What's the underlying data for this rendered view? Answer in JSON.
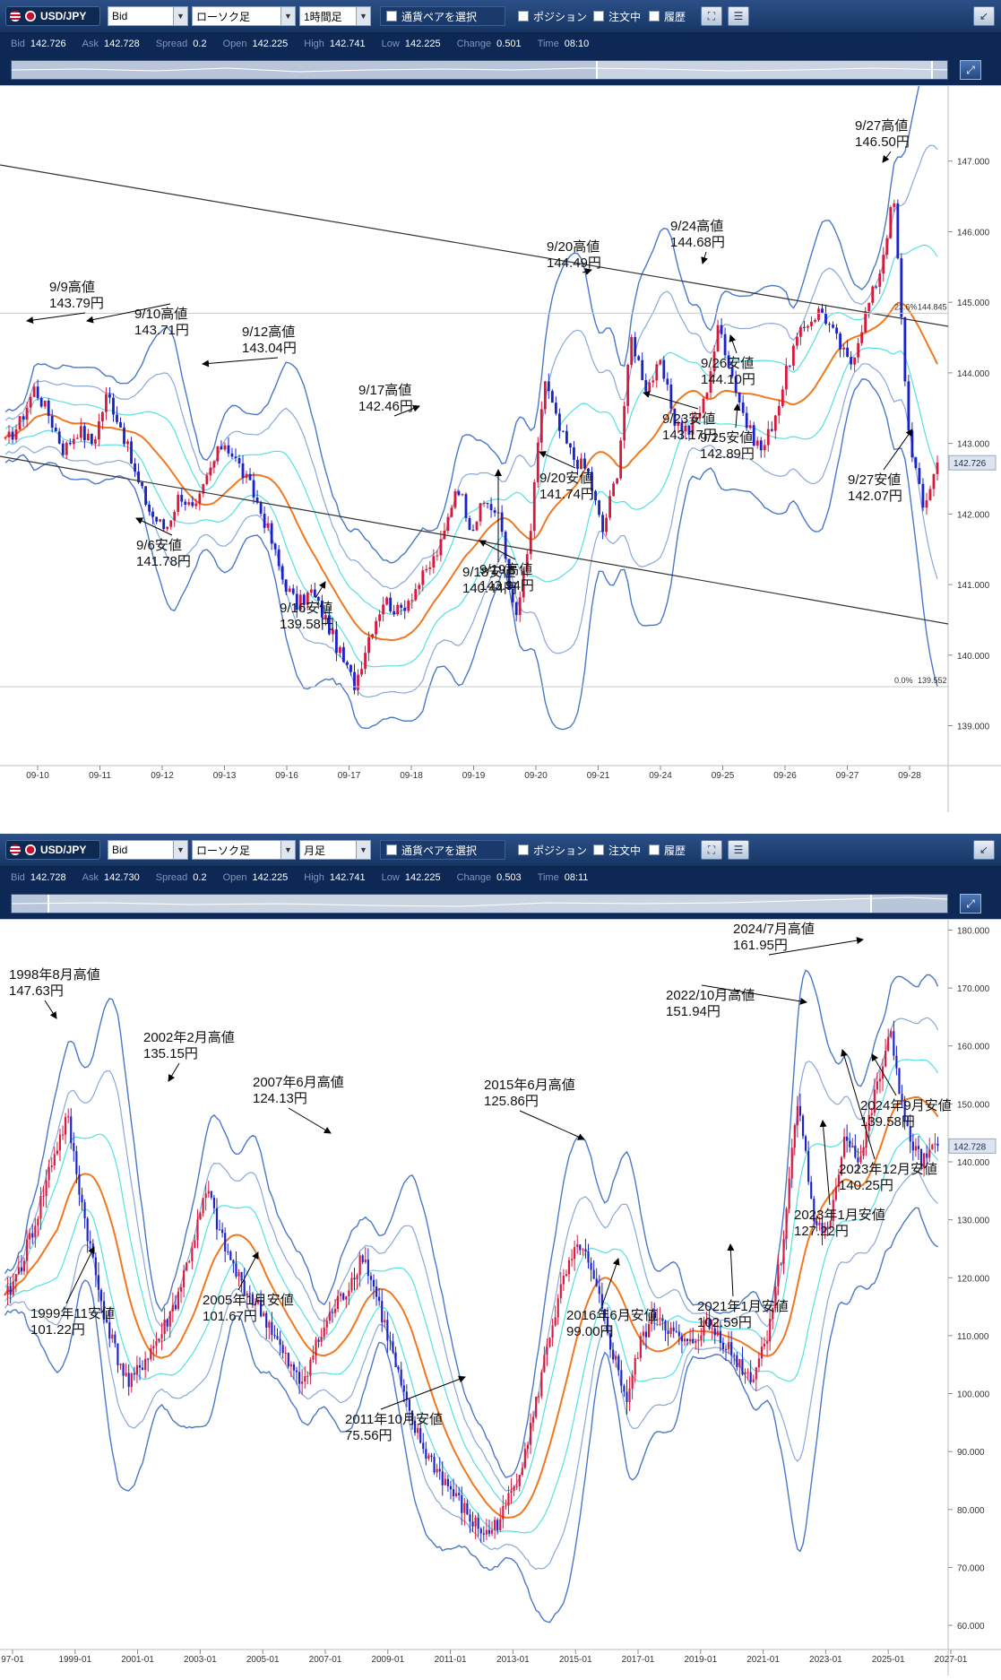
{
  "panels": [
    {
      "toolbar": {
        "pair": "USD/JPY",
        "price_type": "Bid",
        "chart_type": "ローソク足",
        "timeframe": "1時間足",
        "select_pair": "通貨ペアを選択",
        "position": "ポジション",
        "order": "注文中",
        "history": "履歴"
      },
      "info": {
        "bid_label": "Bid",
        "bid": "142.726",
        "ask_label": "Ask",
        "ask": "142.728",
        "spread_label": "Spread",
        "spread": "0.2",
        "open_label": "Open",
        "open": "142.225",
        "high_label": "High",
        "high": "142.741",
        "low_label": "Low",
        "low": "142.225",
        "change_label": "Change",
        "change": "0.501",
        "time_label": "Time",
        "time": "08:10"
      },
      "colors": {
        "up": "#d7193d",
        "down": "#1a22c8",
        "ma": "#f07820",
        "band1": "#55e0e0",
        "band2": "#8aa8d8",
        "band3": "#4a78c8"
      },
      "chart_data": {
        "type": "candlestick",
        "x_labels": [
          "09-10",
          "09-11",
          "09-12",
          "09-13",
          "09-16",
          "09-17",
          "09-18",
          "09-19",
          "09-20",
          "09-21",
          "09-24",
          "09-25",
          "09-26",
          "09-27",
          "09-28"
        ],
        "ylim": [
          138.6,
          148.0
        ],
        "y_ticks": [
          "147.000",
          "146.000",
          "145.000",
          "144.000",
          "143.000",
          "142.000",
          "141.000",
          "140.000",
          "139.000"
        ],
        "price_marker": "142.726",
        "fib_levels": [
          {
            "label": "23.6%",
            "value": "144.845",
            "y": 144.845
          },
          {
            "label": "0.0%",
            "value": "139.552",
            "y": 139.552
          }
        ],
        "annotations": [
          {
            "line1": "9/9高値",
            "line2": "143.79円"
          },
          {
            "line1": "9/10高値",
            "line2": "143.71円"
          },
          {
            "line1": "9/12高値",
            "line2": "143.04円"
          },
          {
            "line1": "9/6安値",
            "line2": "141.78円"
          },
          {
            "line1": "9/16安値",
            "line2": "139.58円"
          },
          {
            "line1": "9/17高値",
            "line2": "142.46円"
          },
          {
            "line1": "9/19高値",
            "line2": "143.94円"
          },
          {
            "line1": "9/18安値",
            "line2": "140.44円"
          },
          {
            "line1": "9/20高値",
            "line2": "144.49円"
          },
          {
            "line1": "9/20安値",
            "line2": "141.74円"
          },
          {
            "line1": "9/24高値",
            "line2": "144.68円"
          },
          {
            "line1": "9/23安値",
            "line2": "143.17円"
          },
          {
            "line1": "9/25安値",
            "line2": "142.89円"
          },
          {
            "line1": "9/26安値",
            "line2": "144.10円"
          },
          {
            "line1": "9/27高値",
            "line2": "146.50円"
          },
          {
            "line1": "9/27安値",
            "line2": "142.07円"
          }
        ],
        "path": [
          143.0,
          143.3,
          143.79,
          143.4,
          142.9,
          143.2,
          143.0,
          143.71,
          143.2,
          142.5,
          142.0,
          141.78,
          142.3,
          142.0,
          142.6,
          143.04,
          142.7,
          142.3,
          141.8,
          141.1,
          140.7,
          140.9,
          140.5,
          140.0,
          139.58,
          140.3,
          140.8,
          140.6,
          140.9,
          141.2,
          141.6,
          142.46,
          141.8,
          142.2,
          141.9,
          140.44,
          141.6,
          143.94,
          143.2,
          142.8,
          142.6,
          141.74,
          142.6,
          144.49,
          143.8,
          144.1,
          143.3,
          143.17,
          143.6,
          144.68,
          143.9,
          143.2,
          142.89,
          143.5,
          144.3,
          144.7,
          144.9,
          144.5,
          144.1,
          144.8,
          145.4,
          146.5,
          143.2,
          142.07,
          142.726
        ]
      }
    },
    {
      "toolbar": {
        "pair": "USD/JPY",
        "price_type": "Bid",
        "chart_type": "ローソク足",
        "timeframe": "月足",
        "select_pair": "通貨ペアを選択",
        "position": "ポジション",
        "order": "注文中",
        "history": "履歴"
      },
      "info": {
        "bid_label": "Bid",
        "bid": "142.728",
        "ask_label": "Ask",
        "ask": "142.730",
        "spread_label": "Spread",
        "spread": "0.2",
        "open_label": "Open",
        "open": "142.225",
        "high_label": "High",
        "high": "142.741",
        "low_label": "Low",
        "low": "142.225",
        "change_label": "Change",
        "change": "0.503",
        "time_label": "Time",
        "time": "08:11"
      },
      "chart_data": {
        "type": "candlestick",
        "x_labels": [
          "97-01",
          "1999-01",
          "2001-01",
          "2003-01",
          "2005-01",
          "2007-01",
          "2009-01",
          "2011-01",
          "2013-01",
          "2015-01",
          "2017-01",
          "2019-01",
          "2021-01",
          "2023-01",
          "2025-01",
          "2027-01"
        ],
        "ylim": [
          58,
          181
        ],
        "y_ticks": [
          "180.000",
          "170.000",
          "160.000",
          "150.000",
          "140.000",
          "130.000",
          "120.000",
          "110.000",
          "100.000",
          "90.000",
          "80.000",
          "70.000",
          "60.000"
        ],
        "price_marker": "142.728",
        "annotations": [
          {
            "line1": "1998年8月高値",
            "line2": "147.63円"
          },
          {
            "line1": "1999年11安値",
            "line2": "101.22円"
          },
          {
            "line1": "2002年2月高値",
            "line2": "135.15円"
          },
          {
            "line1": "2005年1月安値",
            "line2": "101.67円"
          },
          {
            "line1": "2007年6月高値",
            "line2": "124.13円"
          },
          {
            "line1": "2011年10月安値",
            "line2": "75.56円"
          },
          {
            "line1": "2015年6月高値",
            "line2": "125.86円"
          },
          {
            "line1": "2016年6月安値",
            "line2": "99.00円"
          },
          {
            "line1": "2021年1月安値",
            "line2": "102.59円"
          },
          {
            "line1": "2022/10月高値",
            "line2": "151.94円"
          },
          {
            "line1": "2023年1月安値",
            "line2": "127.22円"
          },
          {
            "line1": "2023年12月安値",
            "line2": "140.25円"
          },
          {
            "line1": "2024/7月高値",
            "line2": "161.95円"
          },
          {
            "line1": "2024年9月安値",
            "line2": "139.58円"
          }
        ],
        "path": [
          116,
          122,
          130,
          140,
          147.63,
          132,
          118,
          108,
          101.22,
          106,
          110,
          116,
          125,
          135.15,
          126,
          120,
          116,
          112,
          106,
          101.67,
          108,
          114,
          118,
          124.13,
          116,
          106,
          96,
          90,
          86,
          82,
          78,
          75.56,
          79,
          86,
          96,
          110,
          120,
          125.86,
          118,
          108,
          99.0,
          110,
          114,
          110,
          108,
          112,
          110,
          106,
          102.59,
          110,
          125,
          151.94,
          130,
          127.22,
          145,
          140.25,
          152,
          161.95,
          145,
          139.58,
          142.728
        ]
      }
    }
  ]
}
